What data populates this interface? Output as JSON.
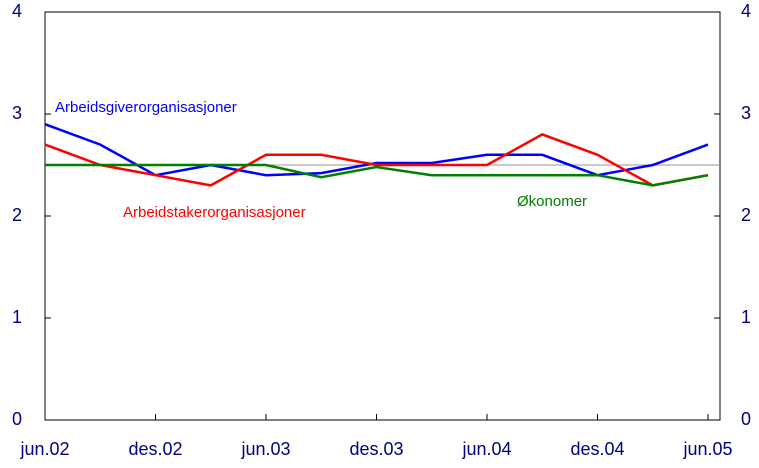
{
  "chart_data": {
    "type": "line",
    "categories": [
      "jun.02",
      null,
      "des.02",
      null,
      "jun.03",
      null,
      "des.03",
      null,
      "jun.04",
      null,
      "des.04",
      null,
      "jun.05"
    ],
    "series": [
      {
        "name": "Arbeidsgiverorganisasjoner",
        "color": "#0000ff",
        "values": [
          2.9,
          2.7,
          2.4,
          2.5,
          2.4,
          2.42,
          2.52,
          2.52,
          2.6,
          2.6,
          2.4,
          2.5,
          2.7
        ]
      },
      {
        "name": "Arbeidstakerorganisasjoner",
        "color": "#ff0000",
        "values": [
          2.7,
          2.5,
          2.4,
          2.3,
          2.6,
          2.6,
          2.5,
          2.5,
          2.5,
          2.8,
          2.6,
          2.3,
          2.4
        ]
      },
      {
        "name": "Økonomer",
        "color": "#008000",
        "values": [
          2.5,
          2.5,
          2.5,
          2.5,
          2.5,
          2.38,
          2.48,
          2.4,
          2.4,
          2.4,
          2.4,
          2.3,
          2.4
        ]
      }
    ],
    "reference_line": 2.5,
    "ylim": [
      0,
      4
    ],
    "yticks": [
      0,
      1,
      2,
      3,
      4
    ],
    "y2lim": [
      0,
      4
    ],
    "y2ticks": [
      0,
      1,
      2,
      3,
      4
    ]
  }
}
